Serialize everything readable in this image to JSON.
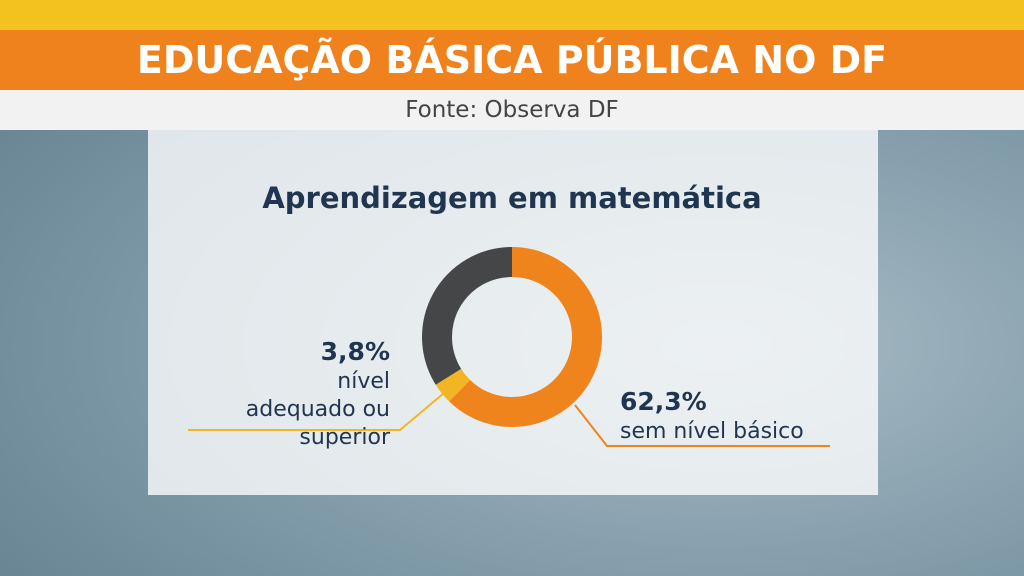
{
  "header": {
    "title": "EDUCAÇÃO BÁSICA PÚBLICA NO DF",
    "source": "Fonte: Observa DF"
  },
  "chart_data": {
    "type": "donut",
    "title": "Aprendizagem em matemática",
    "categories": [
      "sem nível básico",
      "nível adequado ou superior",
      null
    ],
    "values": [
      62.3,
      3.8,
      33.9
    ],
    "value_labels": [
      "62,3%",
      "3,8%",
      null
    ],
    "colors": [
      "#f0841c",
      "#f2b624",
      "#454647"
    ]
  }
}
